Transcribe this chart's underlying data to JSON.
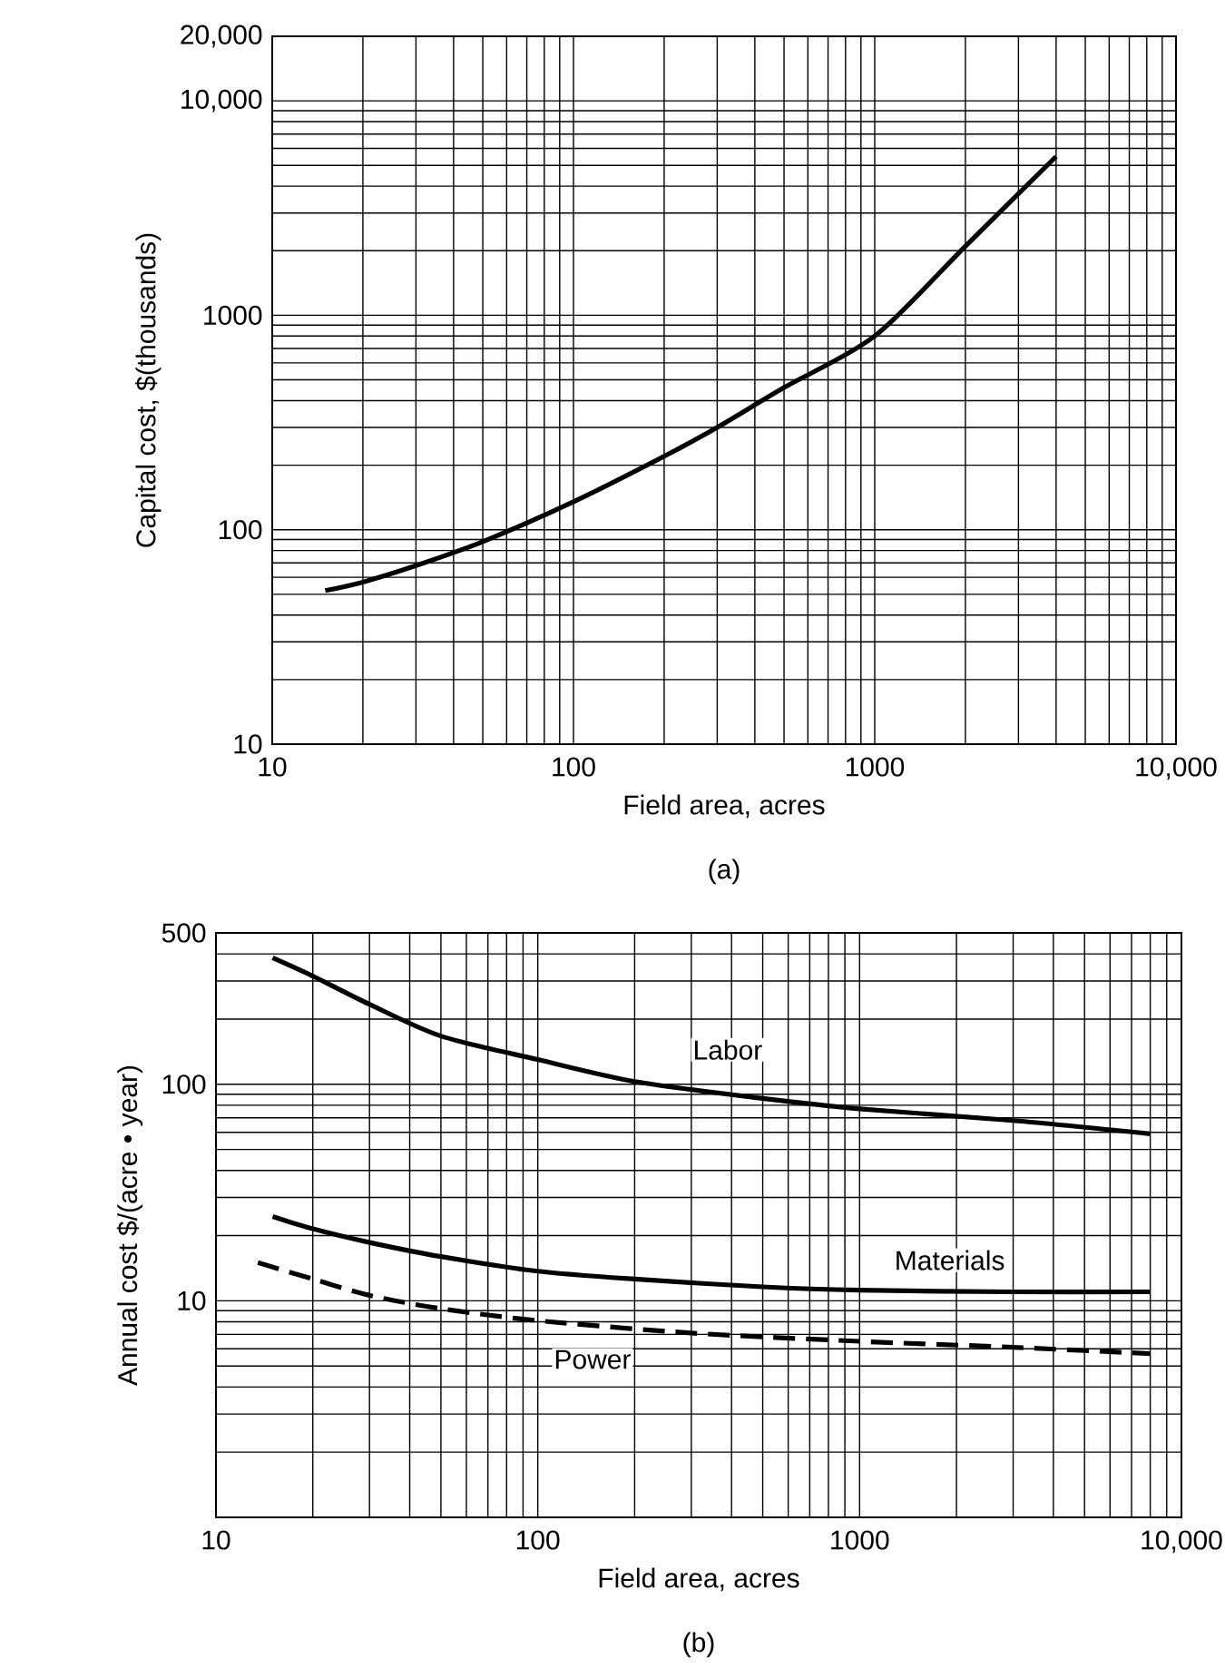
{
  "chart_data": [
    {
      "type": "line",
      "xlabel": "Field area, acres",
      "ylabel": "Capital cost, $(thousands)",
      "log": "xy",
      "grid": true,
      "line_style": "solid",
      "marker": "none",
      "xlim": [
        10,
        10000
      ],
      "ylim": [
        10,
        20000
      ],
      "xticks": [
        10,
        100,
        1000,
        {
          "value": 10000,
          "label": "10,000"
        }
      ],
      "yticks": [
        10,
        100,
        1000,
        {
          "value": 10000,
          "label": "10,000"
        },
        {
          "value": 20000,
          "label": "20,000"
        }
      ],
      "x": [
        15,
        20,
        30,
        50,
        100,
        200,
        300,
        500,
        1000,
        2000,
        4000
      ],
      "series": [
        {
          "color": "#000000",
          "values": [
            52,
            57,
            68,
            88,
            135,
            220,
            300,
            460,
            800,
            2100,
            5500
          ]
        }
      ],
      "annotations": [
        "(a)"
      ]
    },
    {
      "type": "line",
      "xlabel": "Field area, acres",
      "ylabel": "Annual cost $/(acre • year)",
      "log": "xy",
      "grid": true,
      "marker": "none",
      "xlim": [
        10,
        10000
      ],
      "ylim": [
        1,
        500
      ],
      "xticks": [
        10,
        100,
        1000,
        {
          "value": 10000,
          "label": "10,000"
        }
      ],
      "yticks": [
        {
          "value": 1,
          "label": null
        },
        10,
        100,
        500
      ],
      "series": [
        {
          "name": "Labor",
          "color": "#000000",
          "line_style": "solid",
          "x": [
            15,
            20,
            30,
            50,
            100,
            200,
            500,
            1000,
            3000,
            8000
          ],
          "values": [
            384,
            316,
            234,
            167,
            130,
            103,
            86,
            77,
            68,
            59
          ]
        },
        {
          "name": "Materials",
          "color": "#000000",
          "line_style": "solid",
          "x": [
            15,
            20,
            30,
            50,
            100,
            200,
            500,
            1000,
            3000,
            8000
          ],
          "values": [
            24.5,
            21.5,
            18.6,
            16,
            13.7,
            12.6,
            11.6,
            11.2,
            11,
            11
          ]
        },
        {
          "name": "Power",
          "color": "#000000",
          "line_style": "dashed",
          "x": [
            13.5,
            20,
            30,
            50,
            100,
            300,
            1000,
            3000,
            8000
          ],
          "values": [
            15,
            12.6,
            10.6,
            9.2,
            8.1,
            7.1,
            6.5,
            6.1,
            5.7
          ]
        }
      ],
      "annotations": [
        "(b)"
      ]
    }
  ]
}
